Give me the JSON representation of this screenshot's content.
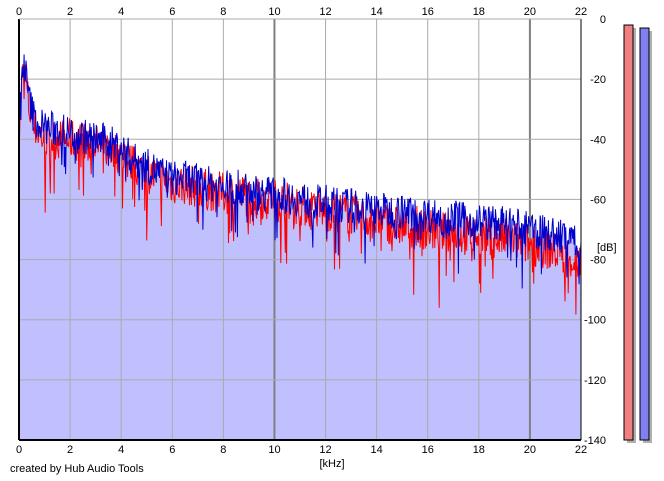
{
  "credit": "created by Hub Audio Tools",
  "chart_data": {
    "type": "area",
    "title": "",
    "xlabel": "[kHz]",
    "ylabel": "[dB]",
    "x_ticks": [
      0,
      2,
      4,
      6,
      8,
      10,
      12,
      14,
      16,
      18,
      20,
      22
    ],
    "y_ticks": [
      0,
      -20,
      -40,
      -60,
      -80,
      -100,
      -120,
      -140
    ],
    "xlim": [
      0,
      22
    ],
    "ylim": [
      -140,
      0
    ],
    "grid": true,
    "colors": {
      "background": "#ffffff",
      "fill": "#c0c0ff",
      "grid": "#aaaaaa",
      "grid_major": "#808080",
      "left_channel": "#ff0000",
      "right_channel": "#0000cc",
      "left_meter": "#f08080",
      "right_meter": "#8080f0"
    },
    "series": [
      {
        "color": "#ff0000",
        "x": [
          0,
          0.1,
          0.2,
          0.4,
          0.6,
          0.8,
          1,
          1.5,
          2,
          2.5,
          3,
          3.5,
          4,
          4.5,
          5,
          5.5,
          6,
          6.5,
          7,
          7.5,
          8,
          8.5,
          9,
          9.5,
          10,
          10.5,
          11,
          11.5,
          12,
          12.5,
          13,
          13.5,
          14,
          14.5,
          15,
          15.5,
          16,
          16.5,
          17,
          17.5,
          18,
          18.5,
          19,
          19.5,
          20,
          20.5,
          21,
          21.5,
          22
        ],
        "values": [
          -40,
          -23,
          -16,
          -30,
          -36,
          -38,
          -40,
          -40,
          -40,
          -41,
          -42,
          -43,
          -45,
          -49,
          -51,
          -53,
          -55,
          -55,
          -56,
          -57,
          -58,
          -58,
          -59,
          -60,
          -60,
          -61,
          -62,
          -63,
          -64,
          -64,
          -65,
          -66,
          -67,
          -68,
          -69,
          -69,
          -70,
          -71,
          -71,
          -72,
          -72,
          -73,
          -73,
          -74,
          -75,
          -76,
          -77,
          -79,
          -82
        ]
      },
      {
        "color": "#0000cc",
        "x": [
          0,
          0.1,
          0.2,
          0.4,
          0.6,
          0.8,
          1,
          1.5,
          2,
          2.5,
          3,
          3.5,
          4,
          4.5,
          5,
          5.5,
          6,
          6.5,
          7,
          7.5,
          8,
          8.5,
          9,
          9.5,
          10,
          10.5,
          11,
          11.5,
          12,
          12.5,
          13,
          13.5,
          14,
          14.5,
          15,
          15.5,
          16,
          16.5,
          17,
          17.5,
          18,
          18.5,
          19,
          19.5,
          20,
          20.5,
          21,
          21.5,
          22
        ],
        "values": [
          -38,
          -20,
          -14,
          -27,
          -33,
          -35,
          -36,
          -37,
          -38,
          -39,
          -40,
          -41,
          -43,
          -47,
          -49,
          -51,
          -53,
          -53,
          -54,
          -55,
          -56,
          -56,
          -57,
          -58,
          -58,
          -59,
          -60,
          -61,
          -61,
          -62,
          -62,
          -63,
          -63,
          -64,
          -64,
          -65,
          -65,
          -66,
          -66,
          -67,
          -67,
          -68,
          -68,
          -69,
          -70,
          -71,
          -72,
          -73,
          -74
        ]
      }
    ],
    "meters": [
      {
        "color": "#f08080",
        "value": -2
      },
      {
        "color": "#8080f0",
        "value": -3
      }
    ]
  }
}
